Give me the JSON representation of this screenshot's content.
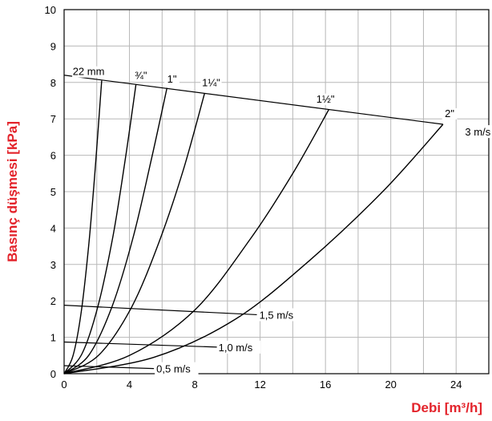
{
  "chart_data": {
    "type": "line",
    "xlabel": "Debi [m³/h]",
    "ylabel": "Basınç düşmesi [kPa]",
    "xlim": [
      0,
      26
    ],
    "ylim": [
      0,
      10
    ],
    "x_ticks": [
      0,
      4,
      8,
      12,
      16,
      20,
      24
    ],
    "y_ticks": [
      0,
      1,
      2,
      3,
      4,
      5,
      6,
      7,
      8,
      9,
      10
    ],
    "grid": true,
    "pipe_curves": [
      {
        "name": "22 mm",
        "x": [
          0,
          0.55,
          1.05,
          1.5,
          1.9,
          2.3
        ],
        "y": [
          0,
          0.5,
          1.7,
          3.5,
          5.6,
          8.05
        ]
      },
      {
        "name": "¾\"",
        "x": [
          0,
          1.1,
          2.1,
          3.0,
          3.75,
          4.4
        ],
        "y": [
          0,
          0.55,
          1.9,
          3.8,
          5.9,
          7.95
        ]
      },
      {
        "name": "1\"",
        "x": [
          0,
          1.5,
          2.9,
          4.2,
          5.3,
          6.3
        ],
        "y": [
          0,
          0.5,
          1.8,
          3.7,
          5.8,
          7.85
        ]
      },
      {
        "name": "1¼\"",
        "x": [
          0,
          2.1,
          4.1,
          5.8,
          7.3,
          8.6
        ],
        "y": [
          0,
          0.5,
          1.8,
          3.6,
          5.6,
          7.7
        ]
      },
      {
        "name": "1½\"",
        "x": [
          0,
          4.0,
          8.0,
          11.4,
          14.0,
          16.2
        ],
        "y": [
          0,
          0.5,
          1.75,
          3.7,
          5.5,
          7.25
        ]
      },
      {
        "name": "2\"",
        "x": [
          0,
          5.5,
          10.5,
          15.0,
          19.5,
          23.2
        ],
        "y": [
          0,
          0.45,
          1.5,
          3.1,
          5.0,
          6.85
        ]
      }
    ],
    "velocity_lines": [
      {
        "name": "0,5 m/s",
        "x": [
          0,
          5.5
        ],
        "y": [
          0.22,
          0.14
        ],
        "label_x": 5.6,
        "label_y": 0.14
      },
      {
        "name": "1,0 m/s",
        "x": [
          0,
          9.4
        ],
        "y": [
          0.87,
          0.73
        ],
        "label_x": 9.4,
        "label_y": 0.73
      },
      {
        "name": "1,5 m/s",
        "x": [
          0,
          11.8
        ],
        "y": [
          1.88,
          1.62
        ],
        "label_x": 11.9,
        "label_y": 1.62
      },
      {
        "name": "3 m/s",
        "x": [
          0,
          23.2
        ],
        "y": [
          8.2,
          6.85
        ],
        "label_x": 24.5,
        "label_y": 6.65
      }
    ],
    "annotations": [
      {
        "text": "22 mm",
        "x": 1.5,
        "y": 8.2
      },
      {
        "text": "¾\"",
        "x": 4.7,
        "y": 8.1
      },
      {
        "text": "1\"",
        "x": 6.6,
        "y": 8.0
      },
      {
        "text": "1¼\"",
        "x": 9.0,
        "y": 7.9
      },
      {
        "text": "1½\"",
        "x": 16.0,
        "y": 7.45
      },
      {
        "text": "2\"",
        "x": 23.6,
        "y": 7.05
      }
    ],
    "colors": {
      "axis_title": "#e3232b",
      "grid": "#b8b8b8",
      "line": "#000000"
    }
  }
}
